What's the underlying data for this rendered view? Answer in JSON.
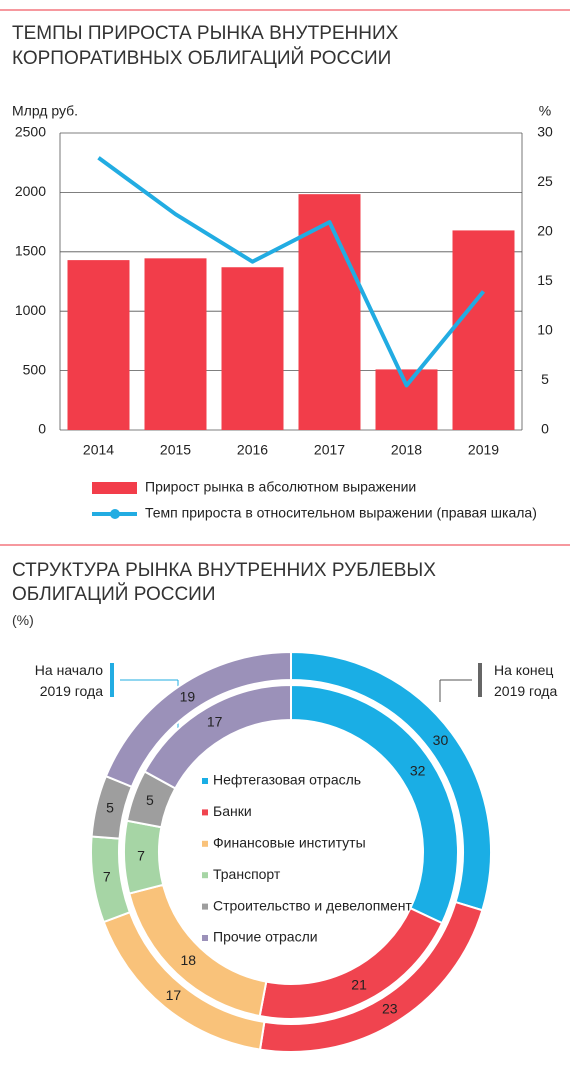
{
  "chart_data": [
    {
      "type": "bar",
      "title": [
        "ТЕМПЫ ПРИРОСТА РЫНКА ВНУТРЕННИХ",
        "КОРПОРАТИВНЫХ ОБЛИГАЦИЙ РОССИИ"
      ],
      "y_label": "Млрд руб.",
      "y2_label": "%",
      "categories": [
        "2014",
        "2015",
        "2016",
        "2017",
        "2018",
        "2019"
      ],
      "series": [
        {
          "name": "Прирост рынка в абсолютном выражении",
          "type": "bar",
          "color": "#f23d4a",
          "values": [
            1430,
            1445,
            1370,
            1985,
            510,
            1680
          ]
        },
        {
          "name": "Темп прироста в относительном выражении (правая шкала)",
          "type": "line",
          "axis": "y2",
          "color": "#22ace2",
          "values": [
            27.5,
            21.8,
            17,
            21,
            4.5,
            14
          ]
        }
      ],
      "ylim": [
        0,
        2500
      ],
      "yticks": [
        0,
        500,
        1000,
        1500,
        2000,
        2500
      ],
      "y2lim": [
        0,
        30
      ],
      "y2ticks": [
        0,
        5,
        10,
        15,
        20,
        25,
        30
      ],
      "grid": true
    },
    {
      "type": "donut",
      "title": [
        "СТРУКТУРА РЫНКА ВНУТРЕННИХ РУБЛЕВЫХ",
        "ОБЛИГАЦИЙ РОССИИ"
      ],
      "subtitle": "(%)",
      "categories": [
        "Нефтегазовая отрасль",
        "Банки",
        "Финансовые институты",
        "Транспорт",
        "Строительство и девелопмент",
        "Прочие отрасли"
      ],
      "colors": [
        "#1aaee5",
        "#f0444f",
        "#f9c27a",
        "#a6d5a5",
        "#9e9e9e",
        "#9b91b9"
      ],
      "series": [
        {
          "name": "На начало 2019 года",
          "ring": "inner",
          "values": [
            32,
            21,
            18,
            7,
            5,
            17
          ]
        },
        {
          "name": "На конец 2019 года",
          "ring": "outer",
          "values": [
            30,
            23,
            17,
            7,
            5,
            19
          ]
        }
      ]
    }
  ]
}
